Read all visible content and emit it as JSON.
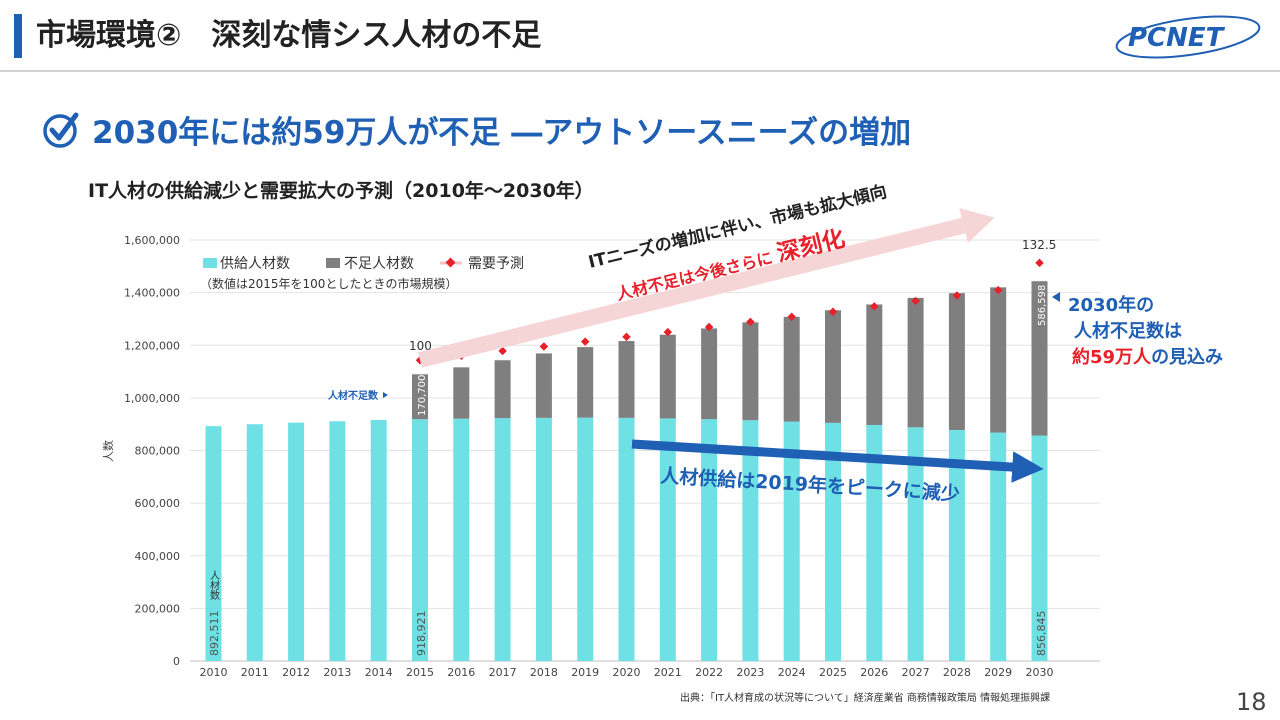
{
  "header": {
    "title": "市場環境②　深刻な情シス人材の不足",
    "logo_text": "PCNET"
  },
  "headline": "2030年には約59万人が不足 ―アウトソースニーズの増加",
  "chart_title": "IT人材の供給減少と需要拡大の予測（2010年～2030年）",
  "source": "出典：「IT人材育成の状況等について」経済産業省 商務情報政策局 情報処理振興課",
  "page_number": "18",
  "chart_data": {
    "type": "bar",
    "categories": [
      "2010",
      "2011",
      "2012",
      "2013",
      "2014",
      "2015",
      "2016",
      "2017",
      "2018",
      "2019",
      "2020",
      "2021",
      "2022",
      "2023",
      "2024",
      "2025",
      "2026",
      "2027",
      "2028",
      "2029",
      "2030"
    ],
    "series": [
      {
        "name": "供給人材数",
        "values": [
          892511,
          900000,
          906000,
          911000,
          916000,
          918921,
          921000,
          923000,
          924000,
          925000,
          924000,
          922000,
          919000,
          915000,
          910000,
          905000,
          897000,
          888000,
          878000,
          868000,
          856845
        ]
      },
      {
        "name": "不足人材数",
        "values": [
          0,
          0,
          0,
          0,
          0,
          170700,
          195000,
          220000,
          245000,
          268000,
          292000,
          318000,
          345000,
          372000,
          398000,
          428000,
          458000,
          492000,
          520000,
          552000,
          586598
        ]
      },
      {
        "name": "需要予測",
        "values": [
          null,
          null,
          null,
          null,
          null,
          100,
          101.5,
          103.1,
          104.6,
          106.2,
          107.8,
          109.4,
          111.1,
          112.8,
          114.5,
          116.2,
          118.0,
          119.8,
          121.6,
          123.4,
          132.5
        ]
      }
    ],
    "ylabel": "人数",
    "ylim": [
      0,
      1600000
    ],
    "yticks": [
      "0",
      "200,000",
      "400,000",
      "600,000",
      "800,000",
      "1,000,000",
      "1,200,000",
      "1,400,000",
      "1,600,000"
    ],
    "legend_position": "top-left",
    "legend_note": "（数値は2015年を100としたときの市場規模）",
    "data_labels": {
      "supply_2010": "892,511",
      "supply_2015": "918,921",
      "supply_2030": "856,845",
      "shortage_2015": "170,700",
      "shortage_2030": "586,598",
      "demand_2015": "100",
      "demand_2030": "132.5"
    },
    "annotations": {
      "people_count": "人材数",
      "shortage_count": "人材不足数",
      "trend_line1": "ITニーズの増加に伴い、市場も拡大傾向",
      "trend_line2a": "人材不足は今後さらに",
      "trend_line2b": "深刻化",
      "supply_peak": "人材供給は2019年をピークに減少",
      "callout_1": "2030年の",
      "callout_2": "人材不足数は",
      "callout_3a": "約59万人",
      "callout_3b": "の見込み"
    },
    "colors": {
      "supply": "#6fe0e4",
      "shortage": "#7f7f7f",
      "demand": "#e8202a",
      "blue": "#1f5fb4",
      "red": "#e8202a"
    }
  }
}
